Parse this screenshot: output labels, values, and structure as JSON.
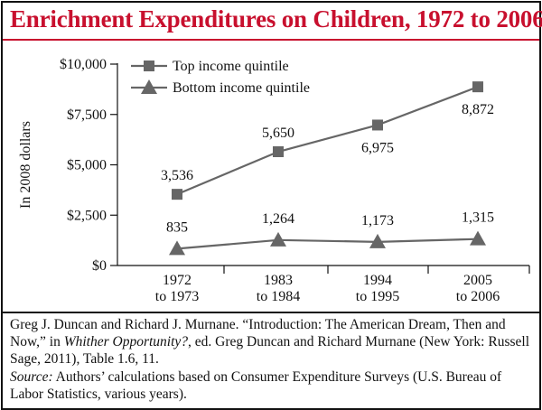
{
  "title": "Enrichment Expenditures on Children, 1972 to 2006",
  "chart_data": {
    "type": "line",
    "categories": [
      "1972\nto 1973",
      "1983\nto 1984",
      "1994\nto 1995",
      "2005\nto 2006"
    ],
    "series": [
      {
        "name": "Top income quintile",
        "marker": "square",
        "values": [
          3536,
          5650,
          6975,
          8872
        ],
        "labels": [
          "3,536",
          "5,650",
          "6,975",
          "8,872"
        ]
      },
      {
        "name": "Bottom income quintile",
        "marker": "triangle",
        "values": [
          835,
          1264,
          1173,
          1315
        ],
        "labels": [
          "835",
          "1,264",
          "1,173",
          "1,315"
        ]
      }
    ],
    "ylabel": "In 2008 dollars",
    "ylim": [
      0,
      10000
    ],
    "yticks": [
      0,
      2500,
      5000,
      7500,
      10000
    ],
    "ytick_labels": [
      "$0",
      "$2,500",
      "$5,000",
      "$7,500",
      "$10,000"
    ],
    "legend_position": "top-left",
    "grid": false,
    "colors": {
      "line": "#666666",
      "marker": "#666666",
      "title": "#c8102e"
    }
  },
  "caption": {
    "citation": "Greg J. Duncan and Richard J. Murnane. “Introduction: The American Dream, Then and Now,” in ",
    "citation_italic": "Whither Opportunity?",
    "citation_tail": ", ed. Greg Duncan and Richard Murnane (New York: Russell Sage, 2011), Table 1.6, 11.",
    "source_label": "Source:",
    "source_text": " Authors’ calculations based on Consumer Expenditure Surveys (U.S. Bureau of Labor Statistics, various years)."
  }
}
